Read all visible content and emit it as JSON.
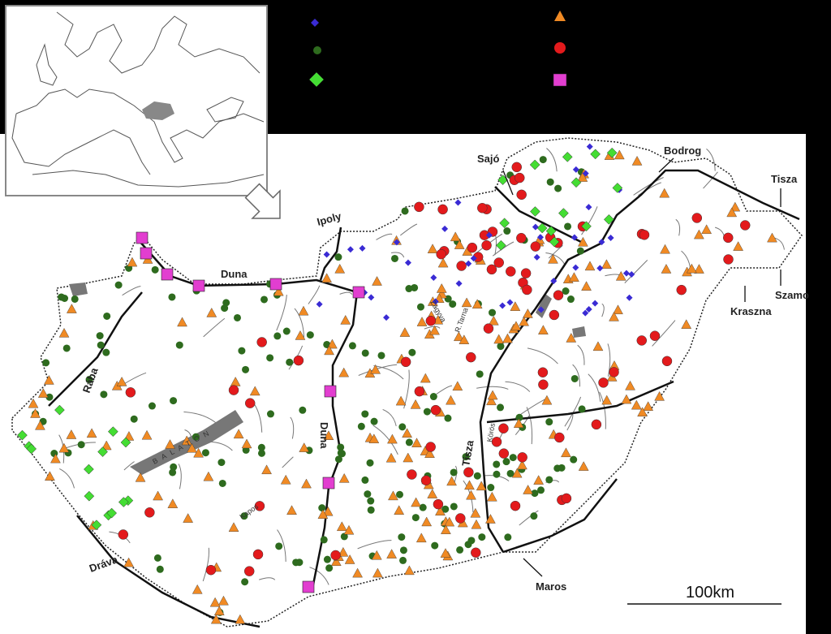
{
  "labels": {
    "sajo": "Sajó",
    "bodrog": "Bodrog",
    "tisza_upper": "Tisza",
    "ipoly": "Ipoly",
    "duna_upper": "Duna",
    "raba": "Rába",
    "balaton": "BALATON",
    "duna_middle": "Duna",
    "tisza_middle": "Tisza",
    "koros": "Körös",
    "kraszna": "Kraszna",
    "szamos": "Szamo",
    "drava": "Dráva",
    "maros": "Maros",
    "kapos": "Kapos",
    "zagyva": "Zagyva",
    "tarna": "R.Tarna"
  },
  "scale_bar": {
    "label": "100km"
  }
}
